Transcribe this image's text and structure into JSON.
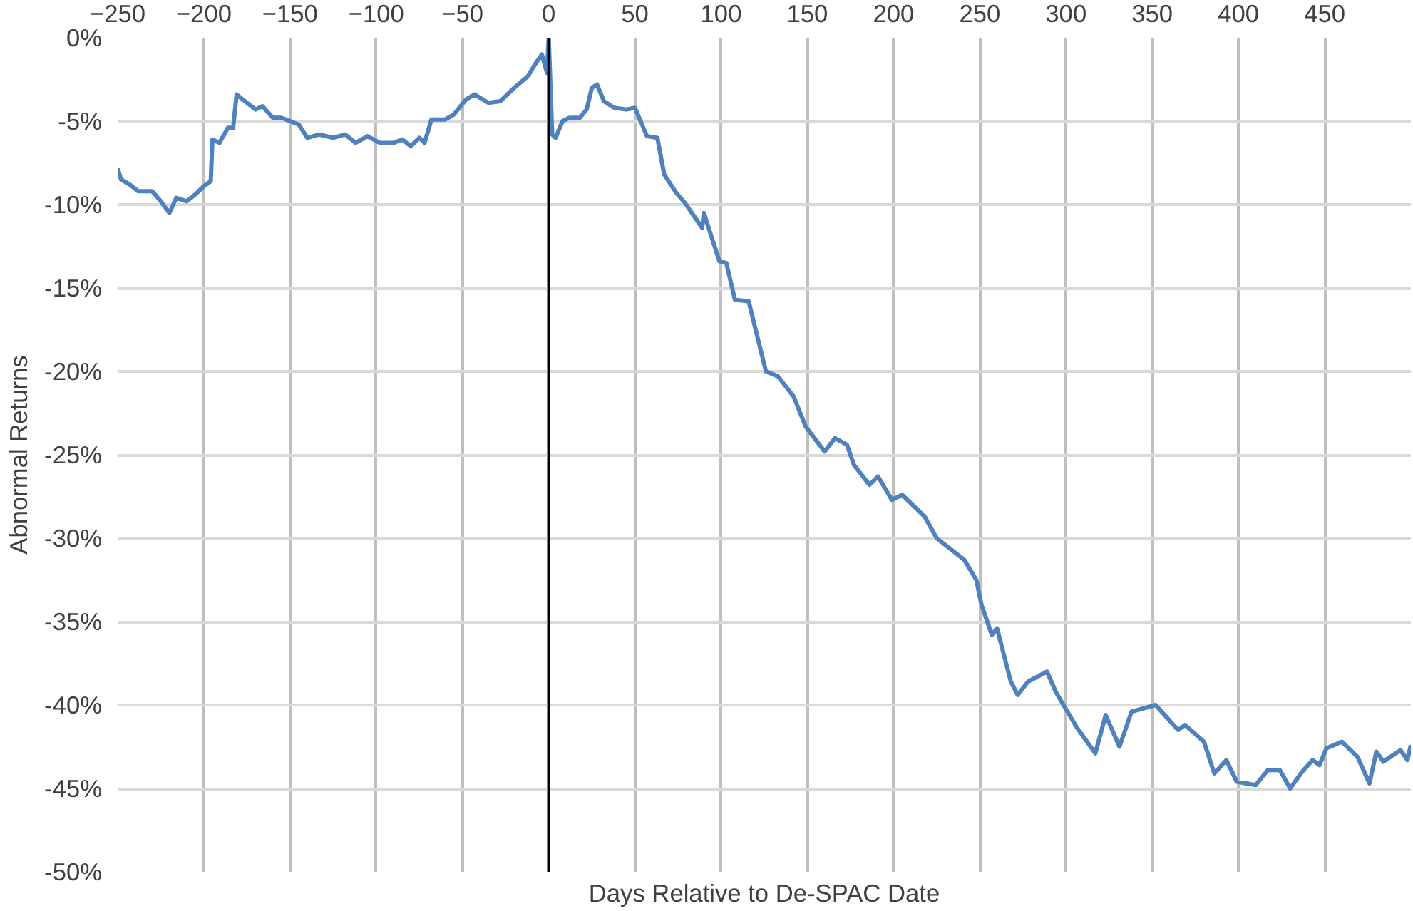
{
  "chart_data": {
    "type": "line",
    "xlabel": "Days Relative to De-SPAC Date",
    "ylabel": "Abnormal Returns",
    "xlim": [
      -250,
      500
    ],
    "xticks": [
      -250,
      -200,
      -150,
      -100,
      -50,
      0,
      50,
      100,
      150,
      200,
      250,
      300,
      350,
      400,
      450
    ],
    "ylim": [
      -50,
      0
    ],
    "yticks": [
      {
        "value": 0,
        "label": "0%"
      },
      {
        "value": -5,
        "label": "-5%"
      },
      {
        "value": -10,
        "label": "-10%"
      },
      {
        "value": -15,
        "label": "-15%"
      },
      {
        "value": -20,
        "label": "-20%"
      },
      {
        "value": -25,
        "label": "-25%"
      },
      {
        "value": -30,
        "label": "-30%"
      },
      {
        "value": -35,
        "label": "-35%"
      },
      {
        "value": -40,
        "label": "-40%"
      },
      {
        "value": -45,
        "label": "-45%"
      },
      {
        "value": -50,
        "label": "-50%"
      }
    ],
    "grid": true,
    "line_style": "solid",
    "ref_lines": [
      {
        "axis": "x",
        "value": 0,
        "color": "#000000"
      }
    ],
    "series": [
      {
        "color": "#4f81bd",
        "x": [
          -250,
          -248,
          -243,
          -238,
          -230,
          -225,
          -220,
          -216,
          -210,
          -205,
          -200,
          -196,
          -195,
          -191,
          -186,
          -183,
          -181,
          -175,
          -170,
          -166,
          -160,
          -155,
          -150,
          -145,
          -140,
          -133,
          -125,
          -118,
          -112,
          -105,
          -98,
          -90,
          -85,
          -80,
          -75,
          -72,
          -68,
          -60,
          -55,
          -48,
          -43,
          -35,
          -28,
          -20,
          -12,
          -8,
          -4,
          -1,
          0,
          2,
          4,
          8,
          12,
          18,
          22,
          25,
          28,
          32,
          38,
          45,
          50,
          57,
          63,
          67,
          74,
          79,
          89,
          90,
          99,
          103,
          108,
          116,
          120,
          126,
          133,
          142,
          149,
          160,
          166,
          173,
          177,
          186,
          191,
          199,
          205,
          218,
          225,
          241,
          248,
          251,
          257,
          260,
          268,
          272,
          278,
          289,
          294,
          306,
          317,
          323,
          331,
          338,
          352,
          365,
          369,
          380,
          386,
          393,
          399,
          410,
          417,
          424,
          430,
          437,
          443,
          447,
          451,
          460,
          469,
          476,
          480,
          484,
          494,
          498,
          500
        ],
        "values": [
          -7.8,
          -8.5,
          -8.8,
          -9.2,
          -9.2,
          -9.8,
          -10.5,
          -9.6,
          -9.8,
          -9.4,
          -8.9,
          -8.6,
          -6.1,
          -6.3,
          -5.4,
          -5.4,
          -3.4,
          -3.9,
          -4.3,
          -4.1,
          -4.8,
          -4.8,
          -5.0,
          -5.2,
          -6.0,
          -5.8,
          -6.0,
          -5.8,
          -6.3,
          -5.9,
          -6.3,
          -6.3,
          -6.1,
          -6.5,
          -6.0,
          -6.3,
          -4.9,
          -4.9,
          -4.6,
          -3.7,
          -3.4,
          -3.9,
          -3.8,
          -3.0,
          -2.3,
          -1.6,
          -1.0,
          -2.1,
          0.0,
          -5.8,
          -6.0,
          -5.0,
          -4.8,
          -4.8,
          -4.3,
          -3.0,
          -2.8,
          -3.8,
          -4.2,
          -4.3,
          -4.2,
          -5.9,
          -6.0,
          -8.2,
          -9.3,
          -9.9,
          -11.4,
          -10.5,
          -13.4,
          -13.5,
          -15.7,
          -15.8,
          -17.5,
          -20.0,
          -20.3,
          -21.5,
          -23.3,
          -24.8,
          -24.0,
          -24.4,
          -25.6,
          -26.8,
          -26.3,
          -27.7,
          -27.4,
          -28.7,
          -30.0,
          -31.3,
          -32.5,
          -34.0,
          -35.8,
          -35.4,
          -38.6,
          -39.4,
          -38.6,
          -38.0,
          -39.2,
          -41.3,
          -42.9,
          -40.6,
          -42.5,
          -40.4,
          -40.0,
          -41.5,
          -41.2,
          -42.2,
          -44.1,
          -43.3,
          -44.6,
          -44.8,
          -43.9,
          -43.9,
          -45.0,
          -44.0,
          -43.3,
          -43.6,
          -42.6,
          -42.2,
          -43.1,
          -44.7,
          -42.8,
          -43.4,
          -42.7,
          -43.3,
          -42.4
        ]
      }
    ]
  }
}
